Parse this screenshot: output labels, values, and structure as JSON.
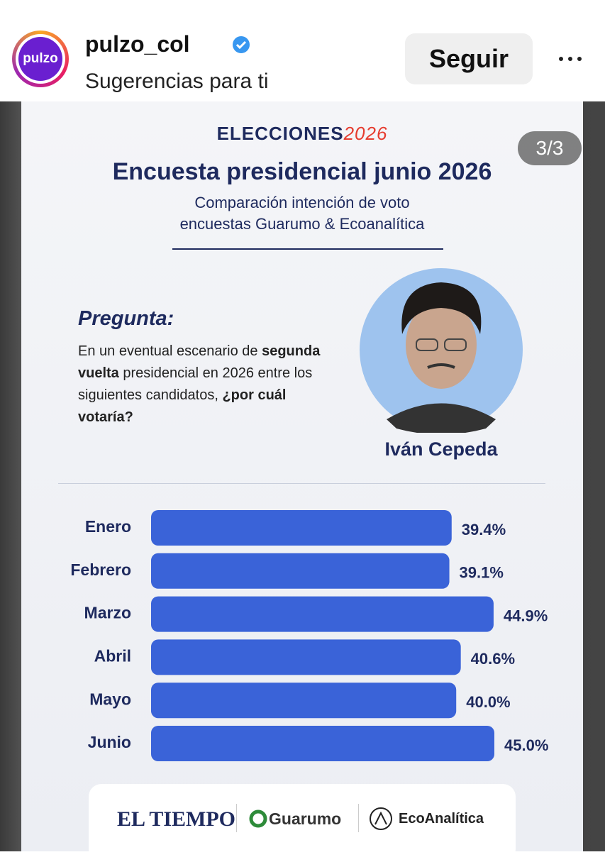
{
  "header": {
    "avatar_text": "pulzo",
    "username": "pulzo_col",
    "subtitle": "Sugerencias para ti",
    "follow_button": "Seguir"
  },
  "post": {
    "counter": "3/3",
    "brand": "ELECCIONES",
    "brand_year": "2026",
    "title": "Encuesta presidencial junio 2026",
    "subtitle_lines": [
      "Comparación intención de voto",
      "encuestas Guarumo & Ecoanalítica"
    ],
    "question_label": "Pregunta:",
    "question_parts": [
      "En un eventual escenario de ",
      "segunda vuelta",
      " presidencial en 2026 entre los siguientes candidatos, ",
      "¿por cuál votaría?"
    ],
    "candidate": "Iván Cepeda",
    "footer": [
      "EL TIEMPO",
      "Guarumo",
      "EcoAnalítica"
    ]
  },
  "chart_data": {
    "type": "bar",
    "orientation": "horizontal",
    "categories": [
      "Enero",
      "Febrero",
      "Marzo",
      "Abril",
      "Mayo",
      "Junio"
    ],
    "values": [
      39.4,
      39.1,
      44.9,
      40.6,
      40.0,
      45.0
    ],
    "value_labels": [
      "39.4%",
      "39.1%",
      "44.9%",
      "40.6%",
      "40.0%",
      "45.0%"
    ],
    "color": "#3a63d8"
  }
}
